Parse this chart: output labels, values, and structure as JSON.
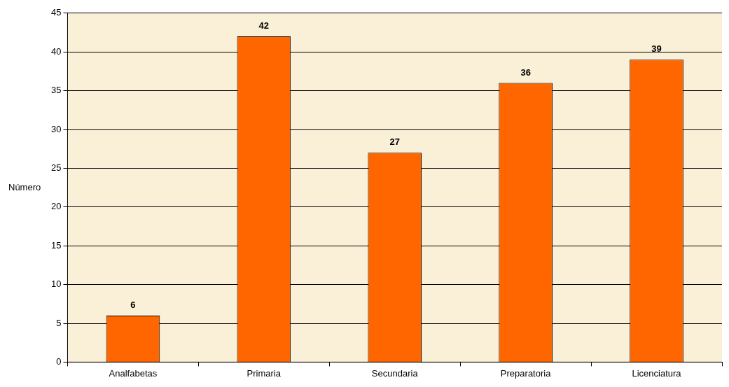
{
  "chart_data": {
    "type": "bar",
    "ylabel": "Número",
    "categories": [
      "Analfabetas",
      "Primaria",
      "Secundaria",
      "Preparatoria",
      "Licenciatura"
    ],
    "values": [
      6,
      42,
      27,
      36,
      39
    ],
    "color": "#ff6600",
    "ylim": [
      0,
      45
    ],
    "yticks": [
      0,
      5,
      10,
      15,
      20,
      25,
      30,
      35,
      40,
      45
    ],
    "grid": "y",
    "data_labels": true,
    "legend": false
  }
}
